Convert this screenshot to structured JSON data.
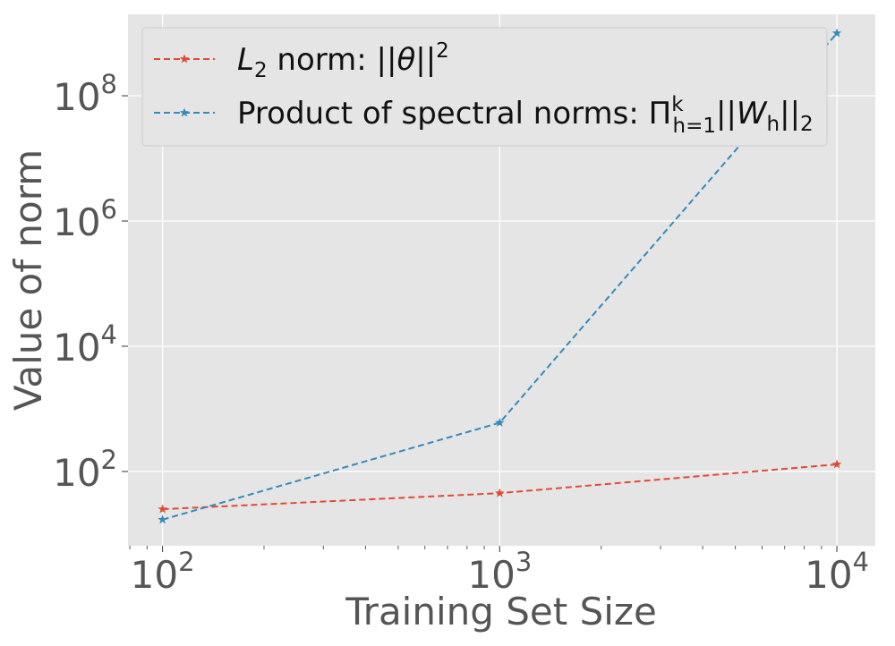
{
  "chart_data": {
    "type": "line",
    "title": "",
    "xlabel": "Training Set Size",
    "ylabel": "Value of norm",
    "x_scale": "log",
    "y_scale": "log",
    "x": [
      100,
      1000,
      10000
    ],
    "xlim": [
      79,
      13000
    ],
    "ylim": [
      6.5,
      2000000000
    ],
    "x_ticks": [
      {
        "value": 100,
        "base": "10",
        "exp": "2"
      },
      {
        "value": 1000,
        "base": "10",
        "exp": "3"
      },
      {
        "value": 10000,
        "base": "10",
        "exp": "4"
      }
    ],
    "y_ticks": [
      {
        "value": 100,
        "base": "10",
        "exp": "2"
      },
      {
        "value": 10000,
        "base": "10",
        "exp": "4"
      },
      {
        "value": 1000000,
        "base": "10",
        "exp": "6"
      },
      {
        "value": 100000000,
        "base": "10",
        "exp": "8"
      }
    ],
    "grid": true,
    "legend_position": "top-left",
    "series": [
      {
        "name": "L2 norm: ||θ||^2",
        "color": "#E24A33",
        "marker": "star",
        "line_style": "dashed",
        "values": [
          25,
          45,
          130
        ],
        "legend": {
          "pre": "",
          "italic": "L",
          "sub": "2",
          "mid": " norm: ||",
          "italic2": "θ",
          "post": "||",
          "sup": "2"
        }
      },
      {
        "name": "Product of spectral norms: Π_{h=1}^{k} ||W_h||_2",
        "color": "#348ABD",
        "marker": "star",
        "line_style": "dashed",
        "values": [
          17,
          600,
          1000000000
        ],
        "legend": {
          "pre": "Product of spectral norms: Π",
          "sub": "h=1",
          "sup": "k",
          "mid": "||",
          "italic": "W",
          "sub2": "h",
          "post": "||",
          "sub3": "2"
        }
      }
    ],
    "background_color": "#E5E5E5",
    "grid_color": "#FFFFFF"
  }
}
